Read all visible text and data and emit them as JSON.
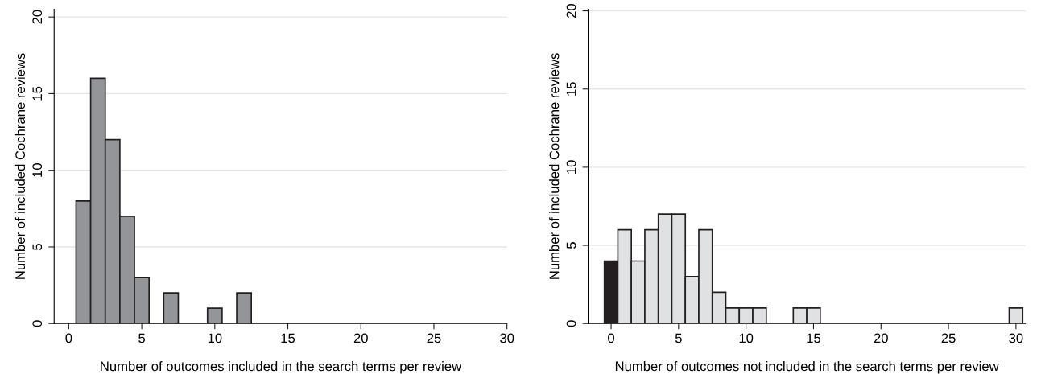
{
  "chart_data": [
    {
      "type": "histogram",
      "xlabel": "Number of outcomes included in the search terms per review",
      "ylabel": "Number of included Cochrane reviews",
      "bins": [
        0.5,
        1.5,
        2.5,
        3.5,
        4.5,
        5.5,
        6.5,
        7.5,
        8.5,
        9.5,
        10.5,
        11.5,
        12.5
      ],
      "values": [
        8,
        16,
        12,
        7,
        3,
        0,
        2,
        0,
        0,
        1,
        0,
        2
      ],
      "colors": [
        "#939598",
        "#939598",
        "#939598",
        "#939598",
        "#939598",
        "#939598",
        "#939598",
        "#939598",
        "#939598",
        "#939598",
        "#939598",
        "#939598"
      ],
      "xlim": [
        -1,
        30
      ],
      "ylim": [
        0,
        20.5
      ],
      "xticks": [
        0,
        5,
        10,
        15,
        20,
        25,
        30
      ],
      "yticks": [
        0,
        5,
        10,
        15,
        20
      ],
      "grid": "y"
    },
    {
      "type": "histogram",
      "xlabel": "Number of outcomes not included in the search terms per review",
      "ylabel": "Number of included Cochrane reviews",
      "bins": [
        -0.5,
        0.5,
        1.5,
        2.5,
        3.5,
        4.5,
        5.5,
        6.5,
        7.5,
        8.5,
        9.5,
        10.5,
        11.5,
        12.5,
        13.5,
        14.5,
        15.5,
        16.5,
        17.5,
        18.5,
        19.5,
        20.5,
        21.5,
        22.5,
        23.5,
        24.5,
        25.5,
        26.5,
        27.5,
        28.5,
        29.5,
        30.5
      ],
      "values": [
        4,
        6,
        4,
        6,
        7,
        7,
        3,
        6,
        2,
        1,
        1,
        1,
        0,
        0,
        1,
        1,
        0,
        0,
        0,
        0,
        0,
        0,
        0,
        0,
        0,
        0,
        0,
        0,
        0,
        0,
        1
      ],
      "colors": [
        "#231f20",
        "#e0e1e3",
        "#e0e1e3",
        "#e0e1e3",
        "#e0e1e3",
        "#e0e1e3",
        "#e0e1e3",
        "#e0e1e3",
        "#e0e1e3",
        "#e0e1e3",
        "#e0e1e3",
        "#e0e1e3",
        "#e0e1e3",
        "#e0e1e3",
        "#e0e1e3",
        "#e0e1e3",
        "#e0e1e3",
        "#e0e1e3",
        "#e0e1e3",
        "#e0e1e3",
        "#e0e1e3",
        "#e0e1e3",
        "#e0e1e3",
        "#e0e1e3",
        "#e0e1e3",
        "#e0e1e3",
        "#e0e1e3",
        "#e0e1e3",
        "#e0e1e3",
        "#e0e1e3",
        "#e0e1e3"
      ],
      "xlim": [
        -1.7,
        30.7
      ],
      "ylim": [
        0,
        20.1
      ],
      "xticks": [
        0,
        5,
        10,
        15,
        20,
        25,
        30
      ],
      "yticks": [
        0,
        5,
        10,
        15,
        20
      ],
      "grid": "y"
    }
  ]
}
